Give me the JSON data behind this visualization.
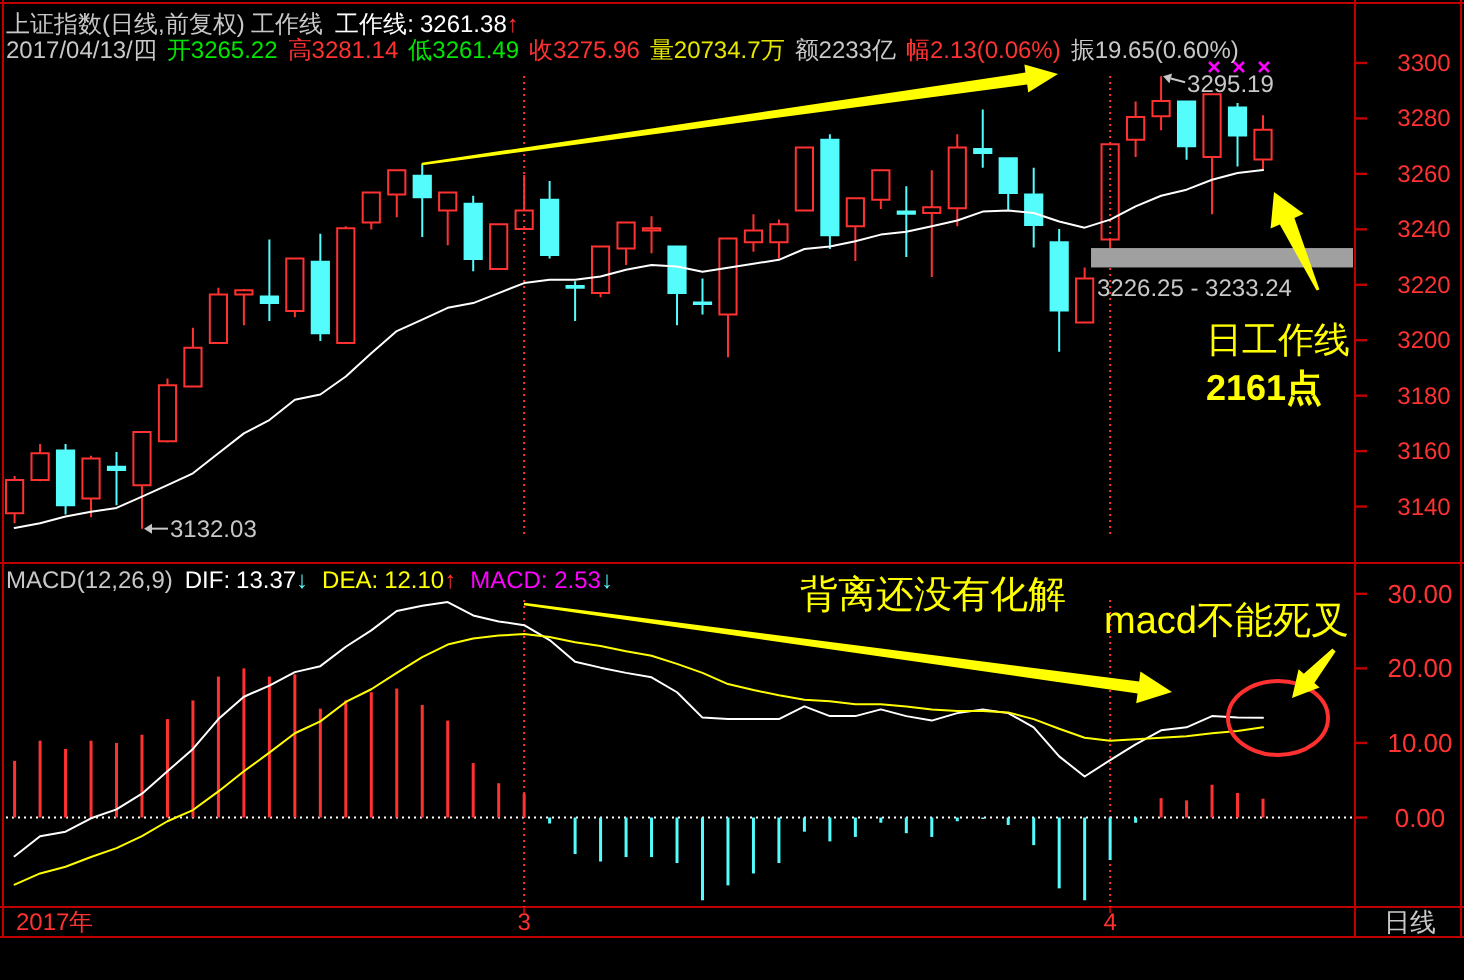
{
  "chart_data": [
    {
      "type": "candlestick",
      "title": "上证指数(日线,前复权) 工作线",
      "categories": [
        null,
        null,
        null,
        null,
        null,
        null,
        null,
        null,
        null,
        null,
        null,
        null,
        null,
        null,
        null,
        null,
        null,
        null,
        null,
        null,
        "3",
        null,
        null,
        null,
        null,
        null,
        null,
        null,
        null,
        null,
        null,
        null,
        null,
        null,
        null,
        null,
        null,
        null,
        null,
        null,
        null,
        null,
        null,
        "4",
        null,
        null,
        null,
        null,
        null,
        null
      ],
      "ohlc": [
        [
          3137.6,
          3151.0,
          3134.0,
          3149.6
        ],
        [
          3149.6,
          3162.6,
          3149.1,
          3159.2
        ],
        [
          3160.2,
          3162.6,
          3137.1,
          3140.5
        ],
        [
          3142.9,
          3158.3,
          3136.1,
          3157.3
        ],
        [
          3154.4,
          3159.7,
          3140.5,
          3153.2
        ],
        [
          3147.7,
          3167.0,
          3132.03,
          3166.9
        ],
        [
          3163.6,
          3186.2,
          3163.1,
          3183.8
        ],
        [
          3183.3,
          3204.5,
          3183.3,
          3197.3
        ],
        [
          3199.0,
          3218.9,
          3199.0,
          3216.5
        ],
        [
          3216.5,
          3218.5,
          3205.4,
          3218.0
        ],
        [
          3215.8,
          3236.3,
          3206.9,
          3213.4
        ],
        [
          3210.5,
          3229.5,
          3208.3,
          3229.5
        ],
        [
          3228.3,
          3238.4,
          3199.7,
          3202.5
        ],
        [
          3199.0,
          3241.1,
          3199.0,
          3240.4
        ],
        [
          3242.5,
          3253.3,
          3239.9,
          3253.3
        ],
        [
          3252.6,
          3261.3,
          3244.4,
          3261.3
        ],
        [
          3259.3,
          3263.7,
          3237.2,
          3251.6
        ],
        [
          3246.8,
          3253.3,
          3234.3,
          3253.3
        ],
        [
          3249.2,
          3252.1,
          3224.9,
          3229.3
        ],
        [
          3225.7,
          3241.8,
          3225.7,
          3241.8
        ],
        [
          3240.1,
          3259.6,
          3240.1,
          3246.8
        ],
        [
          3250.7,
          3257.4,
          3229.5,
          3230.7
        ],
        [
          3219.6,
          3221.3,
          3206.9,
          3218.9
        ],
        [
          3217.0,
          3233.8,
          3215.5,
          3233.8
        ],
        [
          3233.1,
          3242.5,
          3227.1,
          3242.5
        ],
        [
          3239.6,
          3244.7,
          3231.4,
          3240.4
        ],
        [
          3233.8,
          3233.8,
          3205.4,
          3217.0
        ],
        [
          3213.6,
          3222.3,
          3209.3,
          3213.1
        ],
        [
          3209.3,
          3236.7,
          3193.9,
          3236.7
        ],
        [
          3235.3,
          3245.4,
          3231.9,
          3239.6
        ],
        [
          3235.3,
          3243.5,
          3229.5,
          3241.8
        ],
        [
          3246.8,
          3269.5,
          3246.8,
          3269.5
        ],
        [
          3272.3,
          3274.3,
          3232.9,
          3237.9
        ],
        [
          3241.1,
          3251.2,
          3228.6,
          3251.2
        ],
        [
          3250.7,
          3261.3,
          3247.3,
          3261.3
        ],
        [
          3246.4,
          3255.5,
          3230.0,
          3245.6
        ],
        [
          3245.9,
          3261.3,
          3222.8,
          3248.0
        ],
        [
          3247.6,
          3274.3,
          3241.1,
          3269.5
        ],
        [
          3269.0,
          3283.2,
          3262.2,
          3267.5
        ],
        [
          3265.6,
          3265.6,
          3246.8,
          3253.1
        ],
        [
          3252.6,
          3262.2,
          3233.4,
          3241.6
        ],
        [
          3235.3,
          3240.1,
          3195.8,
          3210.7
        ],
        [
          3206.4,
          3226.25,
          3206.4,
          3222.3
        ],
        [
          3236.3,
          3270.7,
          3233.24,
          3270.7
        ],
        [
          3272.3,
          3286.1,
          3266.1,
          3280.5
        ],
        [
          3280.8,
          3295.19,
          3275.7,
          3286.3
        ],
        [
          3286.1,
          3286.1,
          3265.1,
          3270.0
        ],
        [
          3266.1,
          3288.7,
          3245.4,
          3288.7
        ],
        [
          3283.9,
          3285.6,
          3262.7,
          3273.8
        ],
        [
          3265.22,
          3281.14,
          3261.49,
          3275.96
        ]
      ],
      "colors": [
        "#ff3232",
        "#ff3232",
        "#54fcfc",
        "#ff3232",
        "#54fcfc",
        "#ff3232",
        "#ff3232",
        "#ff3232",
        "#ff3232",
        "#ff3232",
        "#54fcfc",
        "#ff3232",
        "#54fcfc",
        "#ff3232",
        "#ff3232",
        "#ff3232",
        "#54fcfc",
        "#ff3232",
        "#54fcfc",
        "#ff3232",
        "#ff3232",
        "#54fcfc",
        "#54fcfc",
        "#ff3232",
        "#ff3232",
        "#ff3232",
        "#54fcfc",
        "#54fcfc",
        "#ff3232",
        "#ff3232",
        "#ff3232",
        "#ff3232",
        "#54fcfc",
        "#ff3232",
        "#ff3232",
        "#54fcfc",
        "#ff3232",
        "#ff3232",
        "#54fcfc",
        "#54fcfc",
        "#54fcfc",
        "#54fcfc",
        "#ff3232",
        "#ff3232",
        "#ff3232",
        "#ff3232",
        "#54fcfc",
        "#ff3232",
        "#54fcfc",
        "#ff3232"
      ],
      "series": [
        {
          "name": "工作线:",
          "type": "line",
          "color": "#ffffff",
          "values": [
            3132.3,
            3134.0,
            3136.4,
            3138.1,
            3139.5,
            3143.6,
            3147.7,
            3152.0,
            3159.2,
            3166.4,
            3171.2,
            3178.5,
            3180.4,
            3186.9,
            3195.3,
            3203.3,
            3207.4,
            3211.7,
            3213.4,
            3217.0,
            3220.6,
            3221.8,
            3221.8,
            3223.0,
            3225.4,
            3227.1,
            3226.6,
            3224.7,
            3226.1,
            3227.6,
            3229.0,
            3232.9,
            3233.8,
            3235.7,
            3238.1,
            3239.1,
            3241.1,
            3243.2,
            3246.4,
            3246.8,
            3245.9,
            3242.8,
            3240.6,
            3243.5,
            3248.3,
            3252.1,
            3254.3,
            3257.9,
            3260.3,
            3261.38
          ]
        }
      ],
      "ylim": [
        3120,
        3322
      ],
      "yticks": [
        3140,
        3160,
        3180,
        3200,
        3220,
        3240,
        3260,
        3280,
        3300
      ],
      "tick_labels": "y",
      "grid": "x",
      "bands": [
        {
          "axis": "y",
          "from": 3226.25,
          "to": 3233.24,
          "label": "3226.25 - 3233.24",
          "color": "#a0a0a0"
        }
      ],
      "annotations": [
        "2017/04/13/四",
        "开3265.22",
        "高3281.14",
        "低3261.49",
        "收3275.96",
        "量20734.7万",
        "额2233亿",
        "幅2.13(0.06%)",
        "振19.65(0.60%)",
        "3261.38↑",
        "3132.03",
        "3295.19",
        "日工作线",
        "2161点"
      ]
    },
    {
      "type": "bar",
      "title": "MACD(12,26,9)",
      "xlabel": "2017年",
      "categories": [
        null,
        null,
        null,
        null,
        null,
        null,
        null,
        null,
        null,
        null,
        null,
        null,
        null,
        null,
        null,
        null,
        null,
        null,
        null,
        null,
        "3",
        null,
        null,
        null,
        null,
        null,
        null,
        null,
        null,
        null,
        null,
        null,
        null,
        null,
        null,
        null,
        null,
        null,
        null,
        null,
        null,
        null,
        null,
        "4",
        null,
        null,
        null,
        null,
        null,
        null
      ],
      "series": [
        {
          "name": "DIF:",
          "type": "line",
          "color": "#ffffff",
          "values": [
            -5.2,
            -2.5,
            -1.9,
            -0.1,
            1.1,
            3.2,
            6.2,
            9.2,
            13.2,
            16.2,
            17.7,
            19.5,
            20.3,
            22.9,
            25.1,
            27.7,
            28.4,
            28.9,
            27.1,
            26.3,
            25.8,
            23.8,
            20.9,
            20.1,
            19.4,
            18.8,
            16.8,
            13.4,
            13.2,
            13.2,
            13.2,
            14.9,
            13.6,
            13.6,
            14.5,
            13.6,
            13.0,
            14.0,
            14.5,
            14.0,
            12.1,
            8.2,
            5.5,
            7.7,
            9.8,
            11.7,
            12.1,
            13.6,
            13.4,
            13.37
          ]
        },
        {
          "name": "DEA:",
          "type": "line",
          "color": "#ffff00",
          "values": [
            -9.0,
            -7.5,
            -6.6,
            -5.3,
            -4.1,
            -2.5,
            -0.5,
            1.0,
            3.5,
            6.2,
            8.7,
            11.3,
            12.9,
            15.5,
            17.2,
            19.4,
            21.5,
            23.2,
            24.0,
            24.4,
            24.6,
            24.2,
            23.5,
            23.0,
            22.3,
            21.7,
            20.6,
            19.4,
            17.9,
            17.1,
            16.4,
            15.8,
            15.6,
            15.2,
            15.2,
            14.9,
            14.5,
            14.3,
            14.3,
            14.1,
            13.2,
            11.9,
            10.7,
            10.3,
            10.5,
            10.7,
            10.9,
            11.3,
            11.6,
            12.1
          ]
        },
        {
          "color": "#ff00ff",
          "values": [
            7.6,
            10.3,
            9.2,
            10.3,
            10.0,
            11.1,
            13.2,
            15.7,
            18.9,
            20.0,
            18.9,
            19.2,
            14.6,
            15.7,
            16.8,
            17.3,
            15.1,
            13.0,
            7.3,
            4.6,
            3.2,
            -0.8,
            -4.9,
            -5.9,
            -5.3,
            -5.3,
            -6.1,
            -11.1,
            -9.1,
            -7.5,
            -6.1,
            -1.9,
            -3.2,
            -2.6,
            -0.7,
            -2.1,
            -2.6,
            -0.5,
            -0.2,
            -1.0,
            -3.7,
            -9.5,
            -11.1,
            -5.7,
            -0.7,
            2.6,
            2.3,
            4.4,
            3.3,
            2.53
          ],
          "colors": [
            "#ff3232",
            "#ff3232",
            "#ff3232",
            "#ff3232",
            "#ff3232",
            "#ff3232",
            "#ff3232",
            "#ff3232",
            "#ff3232",
            "#ff3232",
            "#ff3232",
            "#ff3232",
            "#ff3232",
            "#ff3232",
            "#ff3232",
            "#ff3232",
            "#ff3232",
            "#ff3232",
            "#ff3232",
            "#ff3232",
            "#ff3232",
            "#54fcfc",
            "#54fcfc",
            "#54fcfc",
            "#54fcfc",
            "#54fcfc",
            "#54fcfc",
            "#54fcfc",
            "#54fcfc",
            "#54fcfc",
            "#54fcfc",
            "#54fcfc",
            "#54fcfc",
            "#54fcfc",
            "#54fcfc",
            "#54fcfc",
            "#54fcfc",
            "#54fcfc",
            "#54fcfc",
            "#54fcfc",
            "#54fcfc",
            "#54fcfc",
            "#54fcfc",
            "#54fcfc",
            "#54fcfc",
            "#ff3232",
            "#ff3232",
            "#ff3232",
            "#ff3232",
            "#ff3232"
          ]
        }
      ],
      "ylim": [
        -12,
        34
      ],
      "yticks": [
        {
          "value": 0,
          "label": "0.00"
        },
        {
          "value": 10,
          "label": "10.00"
        },
        {
          "value": 20,
          "label": "20.00"
        },
        {
          "value": 30,
          "label": "30.00"
        }
      ],
      "grid": "x",
      "ref_lines": [
        {
          "axis": "y",
          "value": 0,
          "color": "#ffffff",
          "line_style": "dotted"
        }
      ],
      "annotations": [
        "13.37↓",
        "12.10↑",
        "MACD: 2.53↓",
        "背离还没有化解",
        "macd不能死叉",
        "日线"
      ]
    }
  ]
}
